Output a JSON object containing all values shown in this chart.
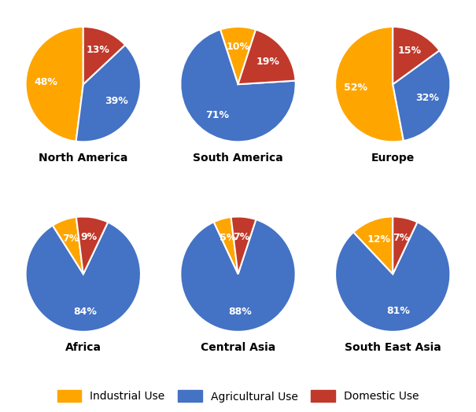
{
  "regions": [
    "North America",
    "South America",
    "Europe",
    "Africa",
    "Central Asia",
    "South East Asia"
  ],
  "data": {
    "North America": [
      48,
      39,
      13
    ],
    "South America": [
      10,
      71,
      19
    ],
    "Europe": [
      53,
      32,
      15
    ],
    "Africa": [
      7,
      84,
      9
    ],
    "Central Asia": [
      5,
      88,
      7
    ],
    "South East Asia": [
      12,
      81,
      7
    ]
  },
  "keys": [
    "Industrial",
    "Agricultural",
    "Domestic"
  ],
  "colors": [
    "#FFA500",
    "#4472C4",
    "#C0392B"
  ],
  "legend_labels": [
    "Industrial Use",
    "Agricultural Use",
    "Domestic Use"
  ],
  "start_angles": {
    "North America": 90,
    "South America": 72,
    "Europe": 90,
    "Africa": 97,
    "Central Asia": 97,
    "South East Asia": 90
  },
  "background_color": "#FFFFFF",
  "title_fontsize": 10,
  "autopct_fontsize": 9,
  "legend_fontsize": 10
}
